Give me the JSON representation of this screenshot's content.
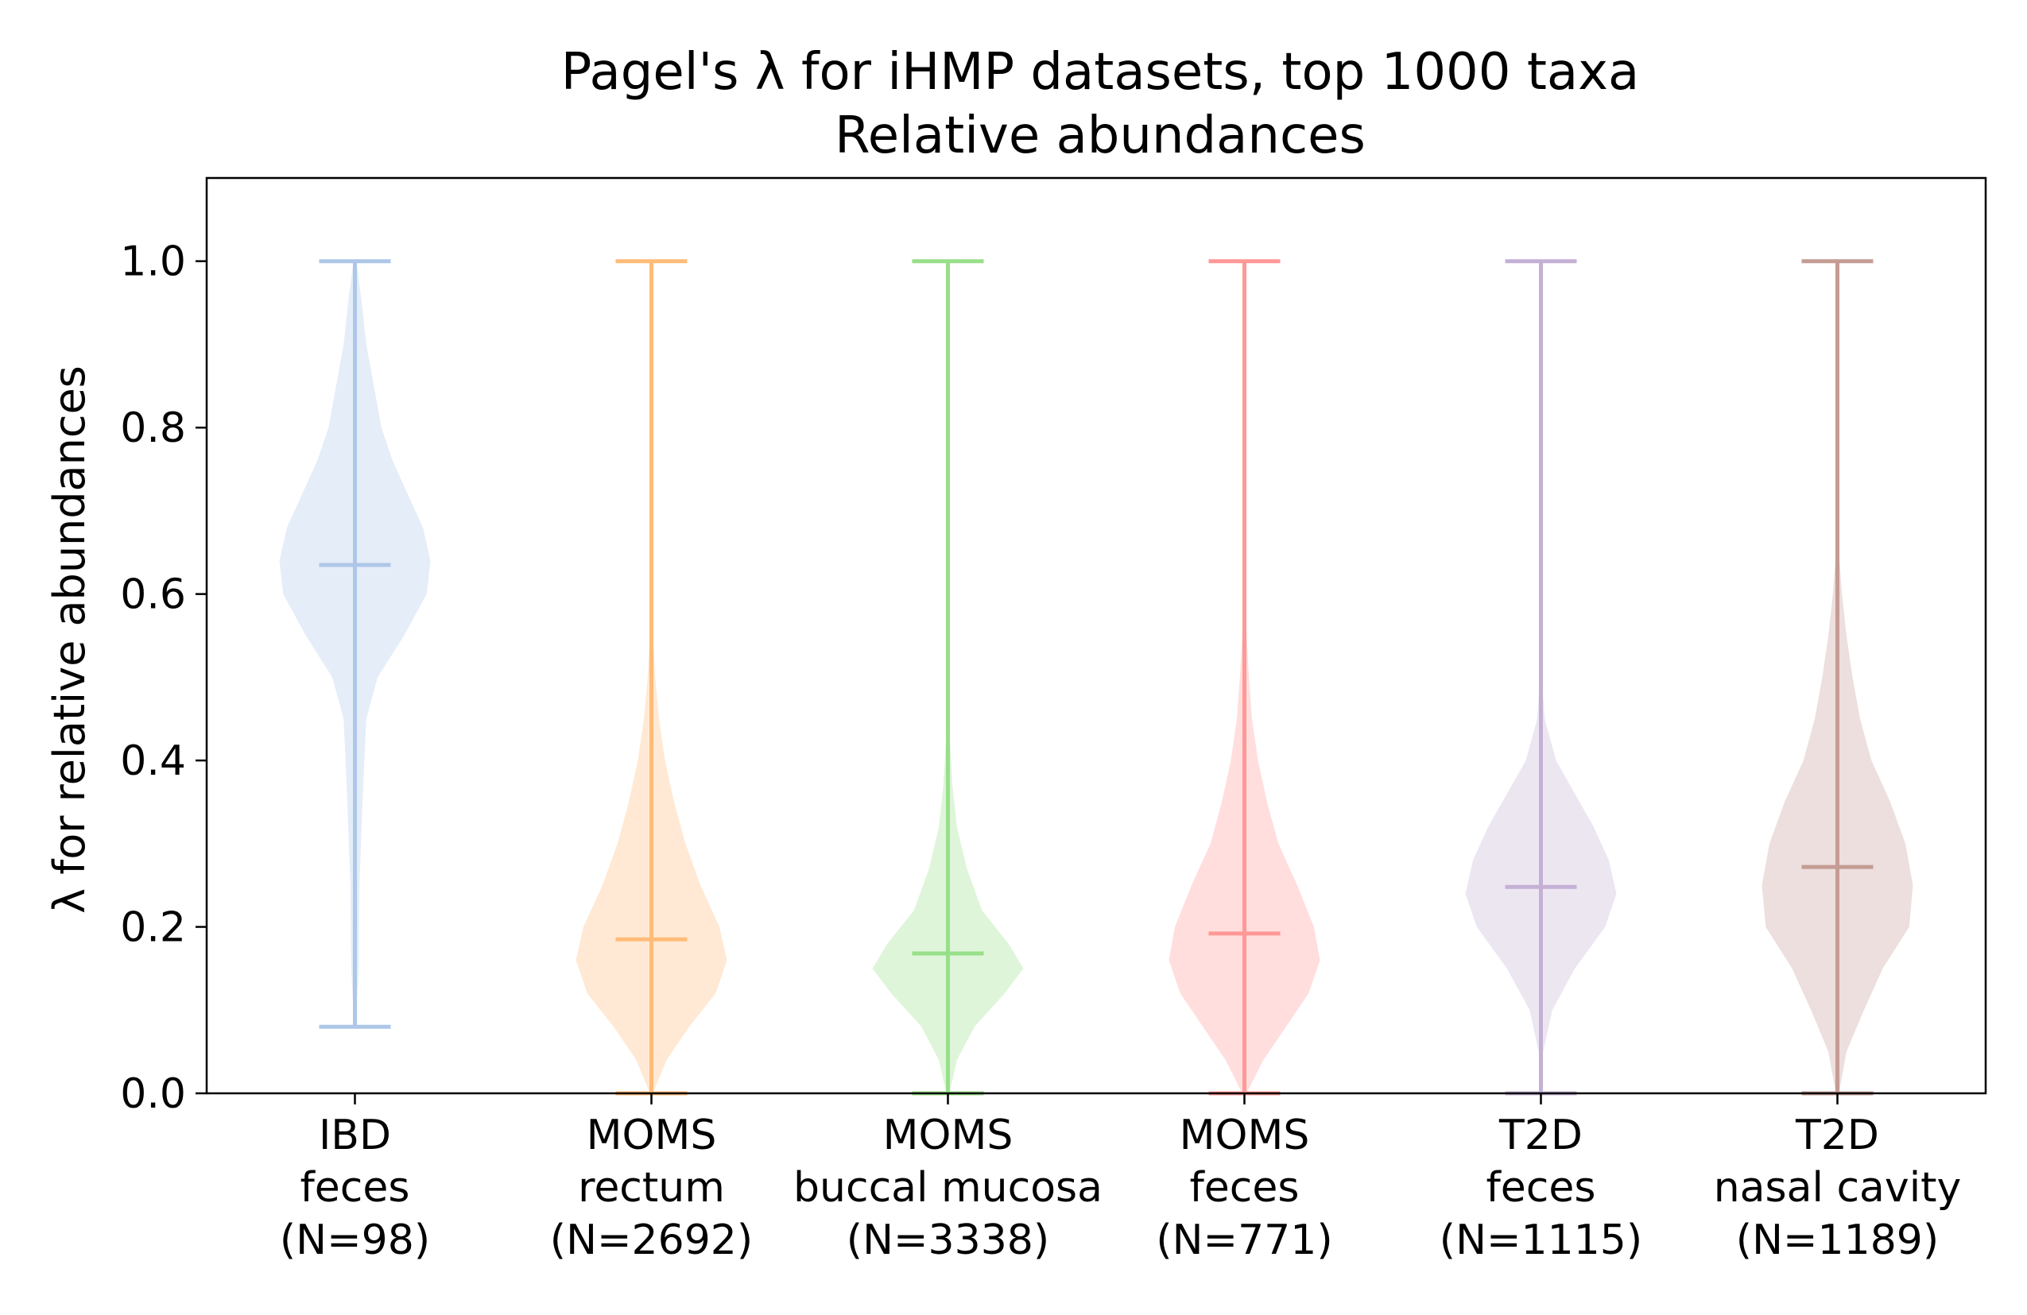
{
  "chart_data": {
    "type": "violin",
    "title_line1": "Pagel's λ for iHMP datasets, top 1000 taxa",
    "title_line2": "Relative abundances",
    "ylabel": "λ for relative abundances",
    "ylim": [
      0,
      1.1
    ],
    "yticks": [
      0.0,
      0.2,
      0.4,
      0.6,
      0.8,
      1.0
    ],
    "ytick_labels": [
      "0.0",
      "0.2",
      "0.4",
      "0.6",
      "0.8",
      "1.0"
    ],
    "grid": false,
    "series": [
      {
        "label_lines": [
          "IBD",
          "feces",
          "(N=98)"
        ],
        "color": "#aec7e8",
        "min": 0.08,
        "max": 1.0,
        "mean": 0.635,
        "density": [
          [
            0.08,
            0.01
          ],
          [
            0.15,
            0.05
          ],
          [
            0.25,
            0.06
          ],
          [
            0.35,
            0.1
          ],
          [
            0.45,
            0.15
          ],
          [
            0.5,
            0.3
          ],
          [
            0.55,
            0.65
          ],
          [
            0.6,
            0.95
          ],
          [
            0.64,
            1.0
          ],
          [
            0.68,
            0.9
          ],
          [
            0.72,
            0.7
          ],
          [
            0.76,
            0.5
          ],
          [
            0.8,
            0.35
          ],
          [
            0.85,
            0.25
          ],
          [
            0.9,
            0.15
          ],
          [
            0.95,
            0.09
          ],
          [
            1.0,
            0.02
          ]
        ]
      },
      {
        "label_lines": [
          "MOMS",
          "rectum",
          "(N=2692)"
        ],
        "color": "#ffbb78",
        "min": 0.0,
        "max": 1.0,
        "mean": 0.185,
        "density": [
          [
            0.0,
            0.02
          ],
          [
            0.04,
            0.2
          ],
          [
            0.08,
            0.5
          ],
          [
            0.12,
            0.85
          ],
          [
            0.16,
            1.0
          ],
          [
            0.2,
            0.9
          ],
          [
            0.25,
            0.65
          ],
          [
            0.3,
            0.45
          ],
          [
            0.35,
            0.3
          ],
          [
            0.4,
            0.18
          ],
          [
            0.45,
            0.1
          ],
          [
            0.5,
            0.05
          ],
          [
            0.55,
            0.02
          ],
          [
            0.6,
            0.01
          ],
          [
            0.8,
            0.005
          ],
          [
            1.0,
            0.0
          ]
        ]
      },
      {
        "label_lines": [
          "MOMS",
          "buccal mucosa",
          "(N=3338)"
        ],
        "color": "#98df8a",
        "min": 0.0,
        "max": 1.0,
        "mean": 0.168,
        "density": [
          [
            0.0,
            0.02
          ],
          [
            0.04,
            0.12
          ],
          [
            0.08,
            0.35
          ],
          [
            0.12,
            0.75
          ],
          [
            0.15,
            1.0
          ],
          [
            0.18,
            0.8
          ],
          [
            0.22,
            0.45
          ],
          [
            0.27,
            0.25
          ],
          [
            0.32,
            0.12
          ],
          [
            0.37,
            0.06
          ],
          [
            0.42,
            0.03
          ],
          [
            0.5,
            0.01
          ],
          [
            0.7,
            0.003
          ],
          [
            1.0,
            0.0
          ]
        ]
      },
      {
        "label_lines": [
          "MOMS",
          "feces",
          "(N=771)"
        ],
        "color": "#ff9896",
        "min": 0.0,
        "max": 1.0,
        "mean": 0.192,
        "density": [
          [
            0.0,
            0.03
          ],
          [
            0.04,
            0.25
          ],
          [
            0.08,
            0.55
          ],
          [
            0.12,
            0.85
          ],
          [
            0.16,
            1.0
          ],
          [
            0.2,
            0.92
          ],
          [
            0.25,
            0.7
          ],
          [
            0.3,
            0.45
          ],
          [
            0.35,
            0.3
          ],
          [
            0.4,
            0.18
          ],
          [
            0.45,
            0.1
          ],
          [
            0.5,
            0.06
          ],
          [
            0.55,
            0.03
          ],
          [
            0.6,
            0.01
          ],
          [
            0.8,
            0.005
          ],
          [
            1.0,
            0.0
          ]
        ]
      },
      {
        "label_lines": [
          "T2D",
          "feces",
          "(N=1115)"
        ],
        "color": "#c5b0d5",
        "min": 0.0,
        "max": 1.0,
        "mean": 0.248,
        "density": [
          [
            0.0,
            0.0
          ],
          [
            0.05,
            0.03
          ],
          [
            0.1,
            0.15
          ],
          [
            0.15,
            0.45
          ],
          [
            0.2,
            0.85
          ],
          [
            0.24,
            1.0
          ],
          [
            0.28,
            0.9
          ],
          [
            0.32,
            0.7
          ],
          [
            0.36,
            0.45
          ],
          [
            0.4,
            0.2
          ],
          [
            0.45,
            0.05
          ],
          [
            0.5,
            0.01
          ],
          [
            0.7,
            0.005
          ],
          [
            1.0,
            0.0
          ]
        ]
      },
      {
        "label_lines": [
          "T2D",
          "nasal cavity",
          "(N=1189)"
        ],
        "color": "#c49c94",
        "min": 0.0,
        "max": 1.0,
        "mean": 0.272,
        "density": [
          [
            0.0,
            0.02
          ],
          [
            0.05,
            0.12
          ],
          [
            0.1,
            0.35
          ],
          [
            0.15,
            0.6
          ],
          [
            0.2,
            0.95
          ],
          [
            0.25,
            1.0
          ],
          [
            0.3,
            0.9
          ],
          [
            0.35,
            0.7
          ],
          [
            0.4,
            0.45
          ],
          [
            0.45,
            0.3
          ],
          [
            0.5,
            0.2
          ],
          [
            0.55,
            0.12
          ],
          [
            0.6,
            0.06
          ],
          [
            0.65,
            0.02
          ],
          [
            0.7,
            0.01
          ],
          [
            1.0,
            0.0
          ]
        ]
      }
    ]
  }
}
